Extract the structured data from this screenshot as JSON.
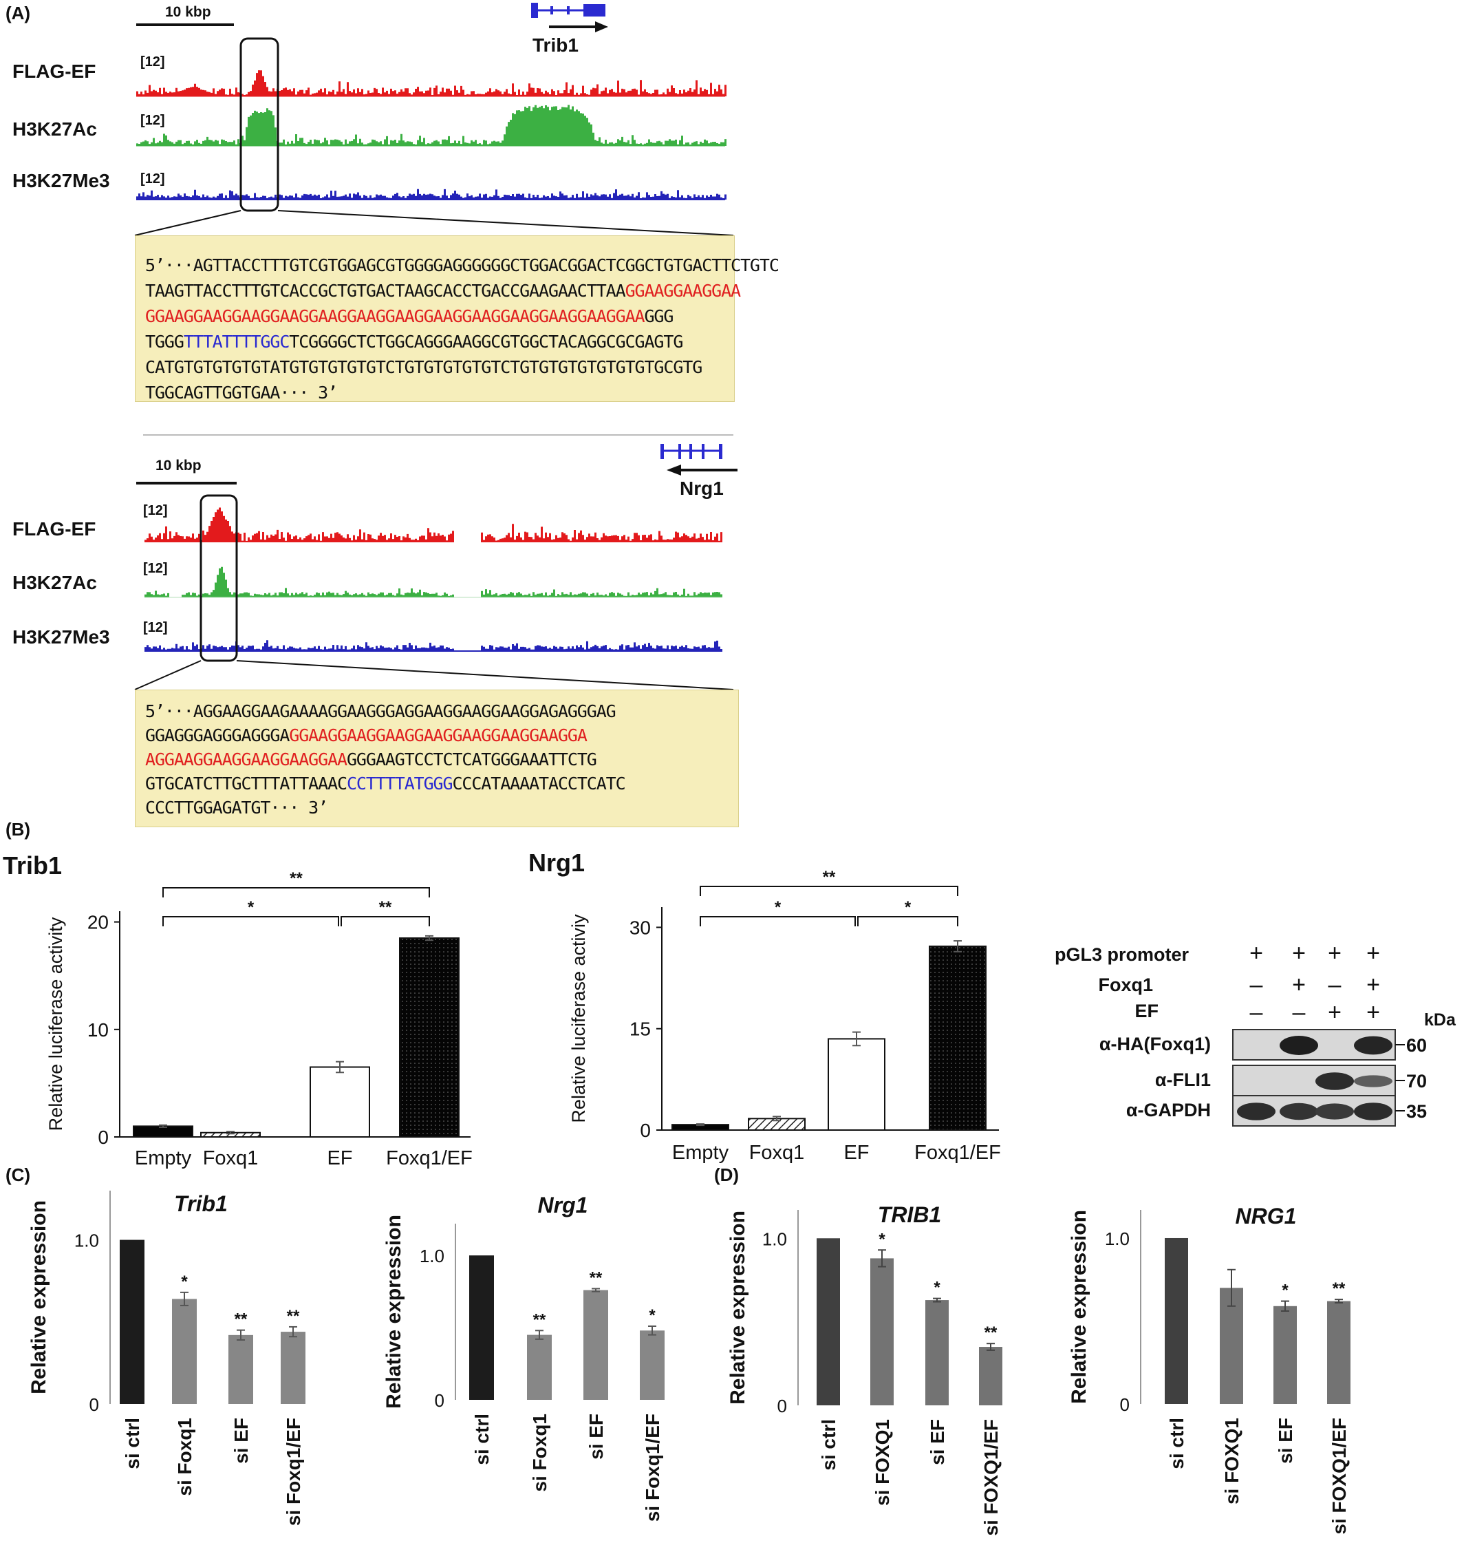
{
  "colors": {
    "flag_track": "#e31a1c",
    "h3k27ac_track": "#3cb043",
    "h3k27me3_track": "#2424b8",
    "gene_model": "#2a2ad0",
    "seq_box": "#f6eebb",
    "motif_gga": "#e02020",
    "motif_fox": "#2a2ad0"
  },
  "panel_a": {
    "label": "(A)",
    "loci": [
      {
        "gene": "Trib1",
        "scale": "10 kbp",
        "tracks": [
          {
            "name": "FLAG-EF",
            "range": "[12]"
          },
          {
            "name": "H3K27Ac",
            "range": "[12]"
          },
          {
            "name": "H3K27Me3",
            "range": "[12]"
          }
        ],
        "sequence": [
          [
            {
              "t": "5’···AGTTACCTTTGTCGTGGAGCGTGGGGAGGGGGGCTGGACGGACTCGGCTGTGACTTCTGTC",
              "c": "k"
            }
          ],
          [
            {
              "t": "TAAGTTACCTTTGTCACCGCTGTGACTAAGCACCTGACCGAAGAACTTAA",
              "c": "k"
            },
            {
              "t": "GGAAGGAAGGAA",
              "c": "r"
            }
          ],
          [
            {
              "t": "GGAAGGAAGGAAGGAAGGAAGGAAGGAAGGAAGGAAGGAAGGAAGGAAGGAA",
              "c": "r"
            },
            {
              "t": "GGG",
              "c": "k"
            }
          ],
          [
            {
              "t": "TGGG",
              "c": "k"
            },
            {
              "t": "TTTATTTTGGC",
              "c": "b"
            },
            {
              "t": "TCGGGGCTCTGGCAGGGAAGGCGTGGCTACAGGCGCGAGTG",
              "c": "k"
            }
          ],
          [
            {
              "t": "CATGTGTGTGTGTATGTGTGTGTGTCTGTGTGTGTGTCTGTGTGTGTGTGTGTGCGTG",
              "c": "k"
            }
          ],
          [
            {
              "t": "TGGCAGTTGGTGAA··· 3’",
              "c": "k"
            }
          ]
        ]
      },
      {
        "gene": "Nrg1",
        "scale": "10 kbp",
        "tracks": [
          {
            "name": "FLAG-EF",
            "range": "[12]"
          },
          {
            "name": "H3K27Ac",
            "range": "[12]"
          },
          {
            "name": "H3K27Me3",
            "range": "[12]"
          }
        ],
        "sequence": [
          [
            {
              "t": "5’···AGGAAGGAAGAAAAGGAAGGGAGGAAGGAAGGAAGGAGAGGGAG",
              "c": "k"
            }
          ],
          [
            {
              "t": "GGAGGGAGGGAGGGA",
              "c": "k"
            },
            {
              "t": "GGAAGGAAGGAAGGAAGGAAGGAAGGAAGGA",
              "c": "r"
            }
          ],
          [
            {
              "t": "AGGAAGGAAGGAAGGAAGGAA",
              "c": "r"
            },
            {
              "t": "GGGAAGTCCTCTCATGGGAAATTCTG",
              "c": "k"
            }
          ],
          [
            {
              "t": "GTGCATCTTGCTTTATTAAAC",
              "c": "k"
            },
            {
              "t": "CCTTTTATGGG",
              "c": "b"
            },
            {
              "t": "CCCATAAAATACCTCATC",
              "c": "k"
            }
          ],
          [
            {
              "t": "CCCTTGGAGATGT··· 3’",
              "c": "k"
            }
          ]
        ]
      }
    ]
  },
  "panel_b": {
    "label": "(B)",
    "blot": {
      "rows": [
        {
          "label": "pGL3 promoter",
          "signs": [
            "+",
            "+",
            "+",
            "+"
          ]
        },
        {
          "label": "Foxq1",
          "signs": [
            "–",
            "+",
            "–",
            "+"
          ]
        },
        {
          "label": "EF",
          "signs": [
            "–",
            "–",
            "+",
            "+"
          ]
        }
      ],
      "kda_label": "kDa",
      "bands": [
        {
          "label": "α-HA(Foxq1)",
          "kda": "60",
          "intensity": [
            0,
            1,
            0,
            0.95
          ]
        },
        {
          "label": "α-FLI1",
          "kda": "70",
          "intensity": [
            0,
            0,
            0.9,
            0.55
          ]
        },
        {
          "label": "α-GAPDH",
          "kda": "35",
          "intensity": [
            0.9,
            0.85,
            0.8,
            0.9
          ]
        }
      ]
    }
  },
  "panel_c_label": "(C)",
  "panel_d_label": "(D)",
  "chart_data": [
    {
      "id": "b_trib1",
      "type": "bar",
      "title": "Trib1",
      "ylabel": "Relative luciferase activity",
      "categories": [
        "Empty",
        "Foxq1",
        "EF",
        "Foxq1/EF"
      ],
      "values": [
        1.0,
        0.4,
        6.5,
        18.5
      ],
      "errors": [
        0.1,
        0.1,
        0.5,
        0.2
      ],
      "fills": [
        "solid",
        "hatch",
        "white",
        "dots"
      ],
      "ylim": [
        0,
        21
      ],
      "yticks": [
        0,
        10,
        20
      ],
      "tick_labels": [
        "0",
        "10",
        "20"
      ],
      "brackets": [
        {
          "from": 0,
          "to": 3,
          "label": "**"
        },
        {
          "from": 0,
          "to": 2,
          "label": "*"
        },
        {
          "from": 2,
          "to": 3,
          "label": "**"
        }
      ]
    },
    {
      "id": "b_nrg1",
      "type": "bar",
      "title": "Nrg1",
      "ylabel": "Relative luciferase activiy",
      "categories": [
        "Empty",
        "Foxq1",
        "EF",
        "Foxq1/EF"
      ],
      "values": [
        0.8,
        1.7,
        13.5,
        27.2
      ],
      "errors": [
        0.1,
        0.3,
        1.0,
        0.8
      ],
      "fills": [
        "solid",
        "hatch",
        "white",
        "dots"
      ],
      "ylim": [
        0,
        33
      ],
      "yticks": [
        0,
        15,
        30
      ],
      "tick_labels": [
        "0",
        "15",
        "30"
      ],
      "brackets": [
        {
          "from": 0,
          "to": 3,
          "label": "**"
        },
        {
          "from": 0,
          "to": 2,
          "label": "*"
        },
        {
          "from": 2,
          "to": 3,
          "label": "*"
        }
      ]
    },
    {
      "id": "c_trib1",
      "type": "bar",
      "title": "Trib1",
      "ylabel": "Relative expression",
      "categories": [
        "si ctrl",
        "si Foxq1",
        "si EF",
        "si Foxq1/EF"
      ],
      "values": [
        1.0,
        0.64,
        0.42,
        0.44
      ],
      "errors": [
        0,
        0.04,
        0.03,
        0.03
      ],
      "stars": [
        "",
        "*",
        "**",
        "**"
      ],
      "ylim": [
        0,
        1.3
      ],
      "yticks": [
        0,
        1.0
      ],
      "tick_labels": [
        "0",
        "1.0"
      ]
    },
    {
      "id": "c_nrg1",
      "type": "bar",
      "title": "Nrg1",
      "ylabel": "Relative expression",
      "categories": [
        "si ctrl",
        "si Foxq1",
        "si EF",
        "si Foxq1/EF"
      ],
      "values": [
        1.0,
        0.45,
        0.76,
        0.48
      ],
      "errors": [
        0,
        0.03,
        0.01,
        0.03
      ],
      "stars": [
        "",
        "**",
        "**",
        "*"
      ],
      "ylim": [
        0,
        1.22
      ],
      "yticks": [
        0,
        1.0
      ],
      "tick_labels": [
        "0",
        "1.0"
      ]
    },
    {
      "id": "d_trib1",
      "type": "bar",
      "title": "TRIB1",
      "ylabel": "Relative expression",
      "categories": [
        "si ctrl",
        "si FOXQ1",
        "si EF",
        "si FOXQ1/EF"
      ],
      "values": [
        1.0,
        0.88,
        0.63,
        0.35
      ],
      "errors": [
        0,
        0.05,
        0.01,
        0.02
      ],
      "stars": [
        "",
        "*",
        "*",
        "**"
      ],
      "ylim": [
        0,
        1.17
      ],
      "yticks": [
        0,
        1.0
      ],
      "tick_labels": [
        "0",
        "1.0"
      ]
    },
    {
      "id": "d_nrg1",
      "type": "bar",
      "title": "NRG1",
      "ylabel": "Relative expression",
      "categories": [
        "si ctrl",
        "si FOXQ1",
        "si EF",
        "si FOXQ1/EF"
      ],
      "values": [
        1.0,
        0.7,
        0.59,
        0.62
      ],
      "errors": [
        0,
        0.11,
        0.03,
        0.01
      ],
      "stars": [
        "",
        "",
        "*",
        "**"
      ],
      "ylim": [
        0,
        1.17
      ],
      "yticks": [
        0,
        1.0
      ],
      "tick_labels": [
        "0",
        "1.0"
      ]
    }
  ]
}
